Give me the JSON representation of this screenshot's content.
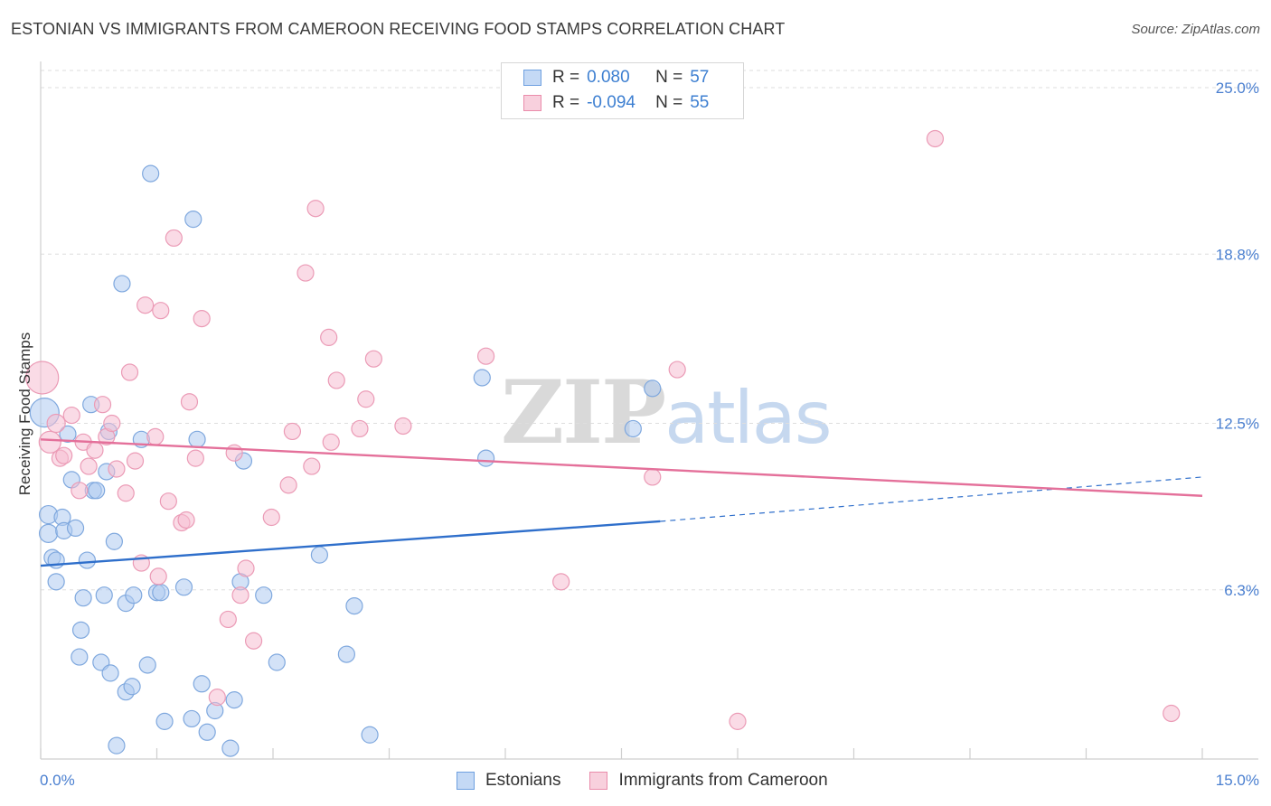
{
  "header": {
    "title": "ESTONIAN VS IMMIGRANTS FROM CAMEROON RECEIVING FOOD STAMPS CORRELATION CHART",
    "source": "Source: ZipAtlas.com"
  },
  "watermark": {
    "zip": "ZIP",
    "atlas": "atlas"
  },
  "legend": {
    "rows": [
      {
        "r_label": "R =",
        "r_value": "0.080",
        "n_label": "N =",
        "n_value": "57",
        "color": "#6fa0e0",
        "fill": "#c4d9f5"
      },
      {
        "r_label": "R =",
        "r_value": "-0.094",
        "n_label": "N =",
        "n_value": "55",
        "color": "#ea8cab",
        "fill": "#f8d0dd"
      }
    ]
  },
  "bottom_legend": {
    "items": [
      "Estonians",
      "Immigrants from Cameroon"
    ]
  },
  "colors": {
    "blue_point_fill": "rgba(175,203,240,0.55)",
    "blue_point_stroke": "#7fa8de",
    "blue_line": "#2f6fcb",
    "pink_point_fill": "rgba(246,190,210,0.55)",
    "pink_point_stroke": "#eb9bb6",
    "pink_line": "#e4709a",
    "grid": "#dedede",
    "axis_label": "#4a7fd0"
  },
  "chart_data": {
    "type": "scatter",
    "title": "ESTONIAN VS IMMIGRANTS FROM CAMEROON RECEIVING FOOD STAMPS CORRELATION CHART",
    "xlabel": "",
    "ylabel": "Receiving Food Stamps",
    "xlim": [
      0,
      15
    ],
    "ylim": [
      0,
      25.5
    ],
    "x_tick_labels": [
      "0.0%",
      "15.0%"
    ],
    "y_ticks": [
      6.3,
      12.5,
      18.8,
      25.0
    ],
    "y_tick_labels": [
      "6.3%",
      "12.5%",
      "18.8%",
      "25.0%"
    ],
    "grid": true,
    "legend_position": "top-center",
    "series": [
      {
        "name": "Estonians",
        "r": 0.08,
        "n": 57,
        "trend": {
          "x": [
            0,
            8.0
          ],
          "y": [
            7.2,
            8.85
          ],
          "dashed_to": [
            15,
            10.5
          ]
        },
        "points": [
          [
            0.05,
            12.9,
            16
          ],
          [
            0.1,
            9.1,
            10
          ],
          [
            0.1,
            8.4,
            10
          ],
          [
            0.15,
            7.5,
            9
          ],
          [
            0.2,
            7.4,
            9
          ],
          [
            0.2,
            6.6,
            9
          ],
          [
            0.28,
            9.0,
            9
          ],
          [
            0.3,
            8.5,
            9
          ],
          [
            0.35,
            12.1,
            9
          ],
          [
            0.4,
            10.4,
            9
          ],
          [
            0.45,
            8.6,
            9
          ],
          [
            0.5,
            3.8,
            9
          ],
          [
            0.52,
            4.8,
            9
          ],
          [
            0.55,
            6.0,
            9
          ],
          [
            0.6,
            7.4,
            9
          ],
          [
            0.65,
            13.2,
            9
          ],
          [
            0.68,
            10.0,
            9
          ],
          [
            0.72,
            10.0,
            9
          ],
          [
            0.78,
            3.6,
            9
          ],
          [
            0.82,
            6.1,
            9
          ],
          [
            0.85,
            10.7,
            9
          ],
          [
            0.88,
            12.2,
            9
          ],
          [
            0.9,
            3.2,
            9
          ],
          [
            0.95,
            8.1,
            9
          ],
          [
            0.98,
            0.5,
            9
          ],
          [
            1.05,
            17.7,
            9
          ],
          [
            1.1,
            2.5,
            9
          ],
          [
            1.1,
            5.8,
            9
          ],
          [
            1.18,
            2.7,
            9
          ],
          [
            1.2,
            6.1,
            9
          ],
          [
            1.3,
            11.9,
            9
          ],
          [
            1.38,
            3.5,
            9
          ],
          [
            1.42,
            21.8,
            9
          ],
          [
            1.5,
            6.2,
            9
          ],
          [
            1.55,
            6.2,
            9
          ],
          [
            1.6,
            1.4,
            9
          ],
          [
            1.85,
            6.4,
            9
          ],
          [
            1.95,
            1.5,
            9
          ],
          [
            1.97,
            20.1,
            9
          ],
          [
            2.02,
            11.9,
            9
          ],
          [
            2.08,
            2.8,
            9
          ],
          [
            2.15,
            1.0,
            9
          ],
          [
            2.25,
            1.8,
            9
          ],
          [
            2.45,
            0.4,
            9
          ],
          [
            2.5,
            2.2,
            9
          ],
          [
            2.58,
            6.6,
            9
          ],
          [
            2.62,
            11.1,
            9
          ],
          [
            2.88,
            6.1,
            9
          ],
          [
            3.05,
            3.6,
            9
          ],
          [
            3.6,
            7.6,
            9
          ],
          [
            3.95,
            3.9,
            9
          ],
          [
            4.05,
            5.7,
            9
          ],
          [
            4.25,
            0.9,
            9
          ],
          [
            5.75,
            11.2,
            9
          ],
          [
            5.7,
            14.2,
            9
          ],
          [
            7.65,
            12.3,
            9
          ],
          [
            7.9,
            13.8,
            9
          ]
        ]
      },
      {
        "name": "Immigrants from Cameroon",
        "r": -0.094,
        "n": 55,
        "trend": {
          "x": [
            0,
            15
          ],
          "y": [
            11.9,
            9.8
          ]
        },
        "points": [
          [
            0.02,
            14.2,
            18
          ],
          [
            0.12,
            11.8,
            12
          ],
          [
            0.2,
            12.5,
            10
          ],
          [
            0.25,
            11.2,
            9
          ],
          [
            0.3,
            11.3,
            9
          ],
          [
            0.4,
            12.8,
            9
          ],
          [
            0.5,
            10.0,
            9
          ],
          [
            0.55,
            11.8,
            9
          ],
          [
            0.62,
            10.9,
            9
          ],
          [
            0.7,
            11.5,
            9
          ],
          [
            0.8,
            13.2,
            9
          ],
          [
            0.85,
            12.0,
            9
          ],
          [
            0.92,
            12.5,
            9
          ],
          [
            0.98,
            10.8,
            9
          ],
          [
            1.1,
            9.9,
            9
          ],
          [
            1.15,
            14.4,
            9
          ],
          [
            1.22,
            11.1,
            9
          ],
          [
            1.3,
            7.3,
            9
          ],
          [
            1.35,
            16.9,
            9
          ],
          [
            1.48,
            12.0,
            9
          ],
          [
            1.52,
            6.8,
            9
          ],
          [
            1.55,
            16.7,
            9
          ],
          [
            1.65,
            9.6,
            9
          ],
          [
            1.72,
            19.4,
            9
          ],
          [
            1.82,
            8.8,
            9
          ],
          [
            1.88,
            8.9,
            9
          ],
          [
            1.92,
            13.3,
            9
          ],
          [
            2.0,
            11.2,
            9
          ],
          [
            2.08,
            16.4,
            9
          ],
          [
            2.28,
            2.3,
            9
          ],
          [
            2.42,
            5.2,
            9
          ],
          [
            2.5,
            11.4,
            9
          ],
          [
            2.58,
            6.1,
            9
          ],
          [
            2.65,
            7.1,
            9
          ],
          [
            2.75,
            4.4,
            9
          ],
          [
            2.98,
            9.0,
            9
          ],
          [
            3.2,
            10.2,
            9
          ],
          [
            3.25,
            12.2,
            9
          ],
          [
            3.42,
            18.1,
            9
          ],
          [
            3.5,
            10.9,
            9
          ],
          [
            3.55,
            20.5,
            9
          ],
          [
            3.72,
            15.7,
            9
          ],
          [
            3.75,
            11.8,
            9
          ],
          [
            3.82,
            14.1,
            9
          ],
          [
            4.12,
            12.3,
            9
          ],
          [
            4.2,
            13.4,
            9
          ],
          [
            4.3,
            14.9,
            9
          ],
          [
            4.68,
            12.4,
            9
          ],
          [
            5.75,
            15.0,
            9
          ],
          [
            6.72,
            6.6,
            9
          ],
          [
            7.9,
            10.5,
            9
          ],
          [
            8.22,
            14.5,
            9
          ],
          [
            9.0,
            1.4,
            9
          ],
          [
            11.55,
            23.1,
            9
          ],
          [
            14.6,
            1.7,
            9
          ]
        ]
      }
    ]
  }
}
